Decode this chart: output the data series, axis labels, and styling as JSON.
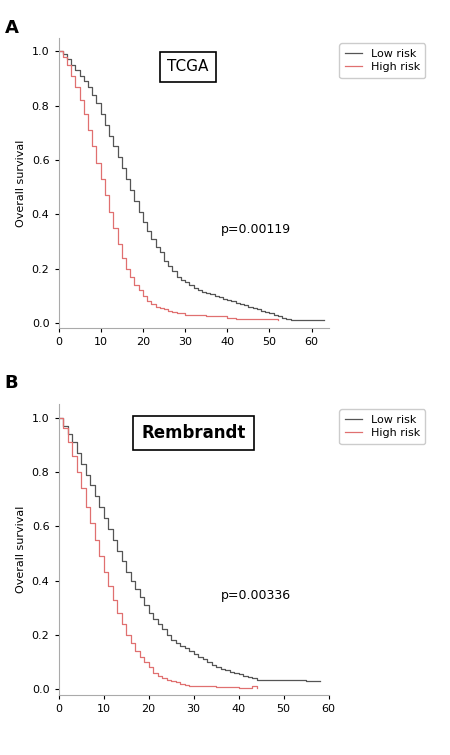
{
  "panel_A": {
    "title": "TCGA",
    "pvalue": "p=0.00119",
    "xlim": [
      0,
      64
    ],
    "ylim": [
      -0.02,
      1.05
    ],
    "xticks": [
      0,
      10,
      20,
      30,
      40,
      50,
      60
    ],
    "yticks": [
      0.0,
      0.2,
      0.4,
      0.6,
      0.8,
      1.0
    ],
    "low_risk_x": [
      0,
      1,
      2,
      3,
      4,
      5,
      6,
      7,
      8,
      9,
      10,
      11,
      12,
      13,
      14,
      15,
      16,
      17,
      18,
      19,
      20,
      21,
      22,
      23,
      24,
      25,
      26,
      27,
      28,
      29,
      30,
      31,
      32,
      33,
      34,
      35,
      36,
      37,
      38,
      39,
      40,
      41,
      42,
      43,
      44,
      45,
      46,
      47,
      48,
      49,
      50,
      51,
      52,
      53,
      54,
      55,
      63
    ],
    "low_risk_y": [
      1.0,
      0.99,
      0.97,
      0.95,
      0.93,
      0.91,
      0.89,
      0.87,
      0.84,
      0.81,
      0.77,
      0.73,
      0.69,
      0.65,
      0.61,
      0.57,
      0.53,
      0.49,
      0.45,
      0.41,
      0.37,
      0.34,
      0.31,
      0.28,
      0.26,
      0.23,
      0.21,
      0.19,
      0.17,
      0.16,
      0.15,
      0.14,
      0.13,
      0.12,
      0.115,
      0.11,
      0.105,
      0.1,
      0.095,
      0.09,
      0.085,
      0.08,
      0.075,
      0.07,
      0.065,
      0.06,
      0.055,
      0.05,
      0.045,
      0.04,
      0.035,
      0.03,
      0.025,
      0.02,
      0.015,
      0.01,
      0.01
    ],
    "high_risk_x": [
      0,
      1,
      2,
      3,
      4,
      5,
      6,
      7,
      8,
      9,
      10,
      11,
      12,
      13,
      14,
      15,
      16,
      17,
      18,
      19,
      20,
      21,
      22,
      23,
      24,
      25,
      26,
      27,
      28,
      30,
      35,
      40,
      42,
      52
    ],
    "high_risk_y": [
      1.0,
      0.98,
      0.95,
      0.91,
      0.87,
      0.82,
      0.77,
      0.71,
      0.65,
      0.59,
      0.53,
      0.47,
      0.41,
      0.35,
      0.29,
      0.24,
      0.2,
      0.17,
      0.14,
      0.12,
      0.1,
      0.08,
      0.07,
      0.06,
      0.055,
      0.05,
      0.045,
      0.04,
      0.035,
      0.03,
      0.025,
      0.02,
      0.015,
      0.01
    ]
  },
  "panel_B": {
    "title": "Rembrandt",
    "pvalue": "p=0.00336",
    "xlim": [
      0,
      60
    ],
    "ylim": [
      -0.02,
      1.05
    ],
    "xticks": [
      0,
      10,
      20,
      30,
      40,
      50,
      60
    ],
    "yticks": [
      0.0,
      0.2,
      0.4,
      0.6,
      0.8,
      1.0
    ],
    "low_risk_x": [
      0,
      1,
      2,
      3,
      4,
      5,
      6,
      7,
      8,
      9,
      10,
      11,
      12,
      13,
      14,
      15,
      16,
      17,
      18,
      19,
      20,
      21,
      22,
      23,
      24,
      25,
      26,
      27,
      28,
      29,
      30,
      31,
      32,
      33,
      34,
      35,
      36,
      37,
      38,
      39,
      40,
      41,
      42,
      43,
      44,
      55,
      58
    ],
    "low_risk_y": [
      1.0,
      0.97,
      0.94,
      0.91,
      0.87,
      0.83,
      0.79,
      0.75,
      0.71,
      0.67,
      0.63,
      0.59,
      0.55,
      0.51,
      0.47,
      0.43,
      0.4,
      0.37,
      0.34,
      0.31,
      0.28,
      0.26,
      0.24,
      0.22,
      0.2,
      0.18,
      0.17,
      0.16,
      0.15,
      0.14,
      0.13,
      0.12,
      0.11,
      0.1,
      0.09,
      0.08,
      0.075,
      0.07,
      0.065,
      0.06,
      0.055,
      0.05,
      0.045,
      0.04,
      0.035,
      0.03,
      0.03
    ],
    "high_risk_x": [
      0,
      1,
      2,
      3,
      4,
      5,
      6,
      7,
      8,
      9,
      10,
      11,
      12,
      13,
      14,
      15,
      16,
      17,
      18,
      19,
      20,
      21,
      22,
      23,
      24,
      25,
      26,
      27,
      28,
      29,
      30,
      35,
      40,
      43,
      44
    ],
    "high_risk_y": [
      1.0,
      0.96,
      0.91,
      0.86,
      0.8,
      0.74,
      0.67,
      0.61,
      0.55,
      0.49,
      0.43,
      0.38,
      0.33,
      0.28,
      0.24,
      0.2,
      0.17,
      0.14,
      0.12,
      0.1,
      0.08,
      0.06,
      0.05,
      0.04,
      0.035,
      0.03,
      0.025,
      0.02,
      0.015,
      0.012,
      0.01,
      0.008,
      0.005,
      0.01,
      0.005
    ]
  },
  "ylabel": "Overall survival",
  "low_risk_label": "Low risk",
  "high_risk_label": "High risk",
  "low_risk_color": "#555555",
  "high_risk_color": "#e07070",
  "panel_label_A": "A",
  "panel_label_B": "B",
  "bg_color": "#ffffff",
  "title_A_fontsize": 11,
  "title_B_fontsize": 12,
  "label_fontsize": 8,
  "tick_fontsize": 8,
  "pvalue_fontsize": 9
}
